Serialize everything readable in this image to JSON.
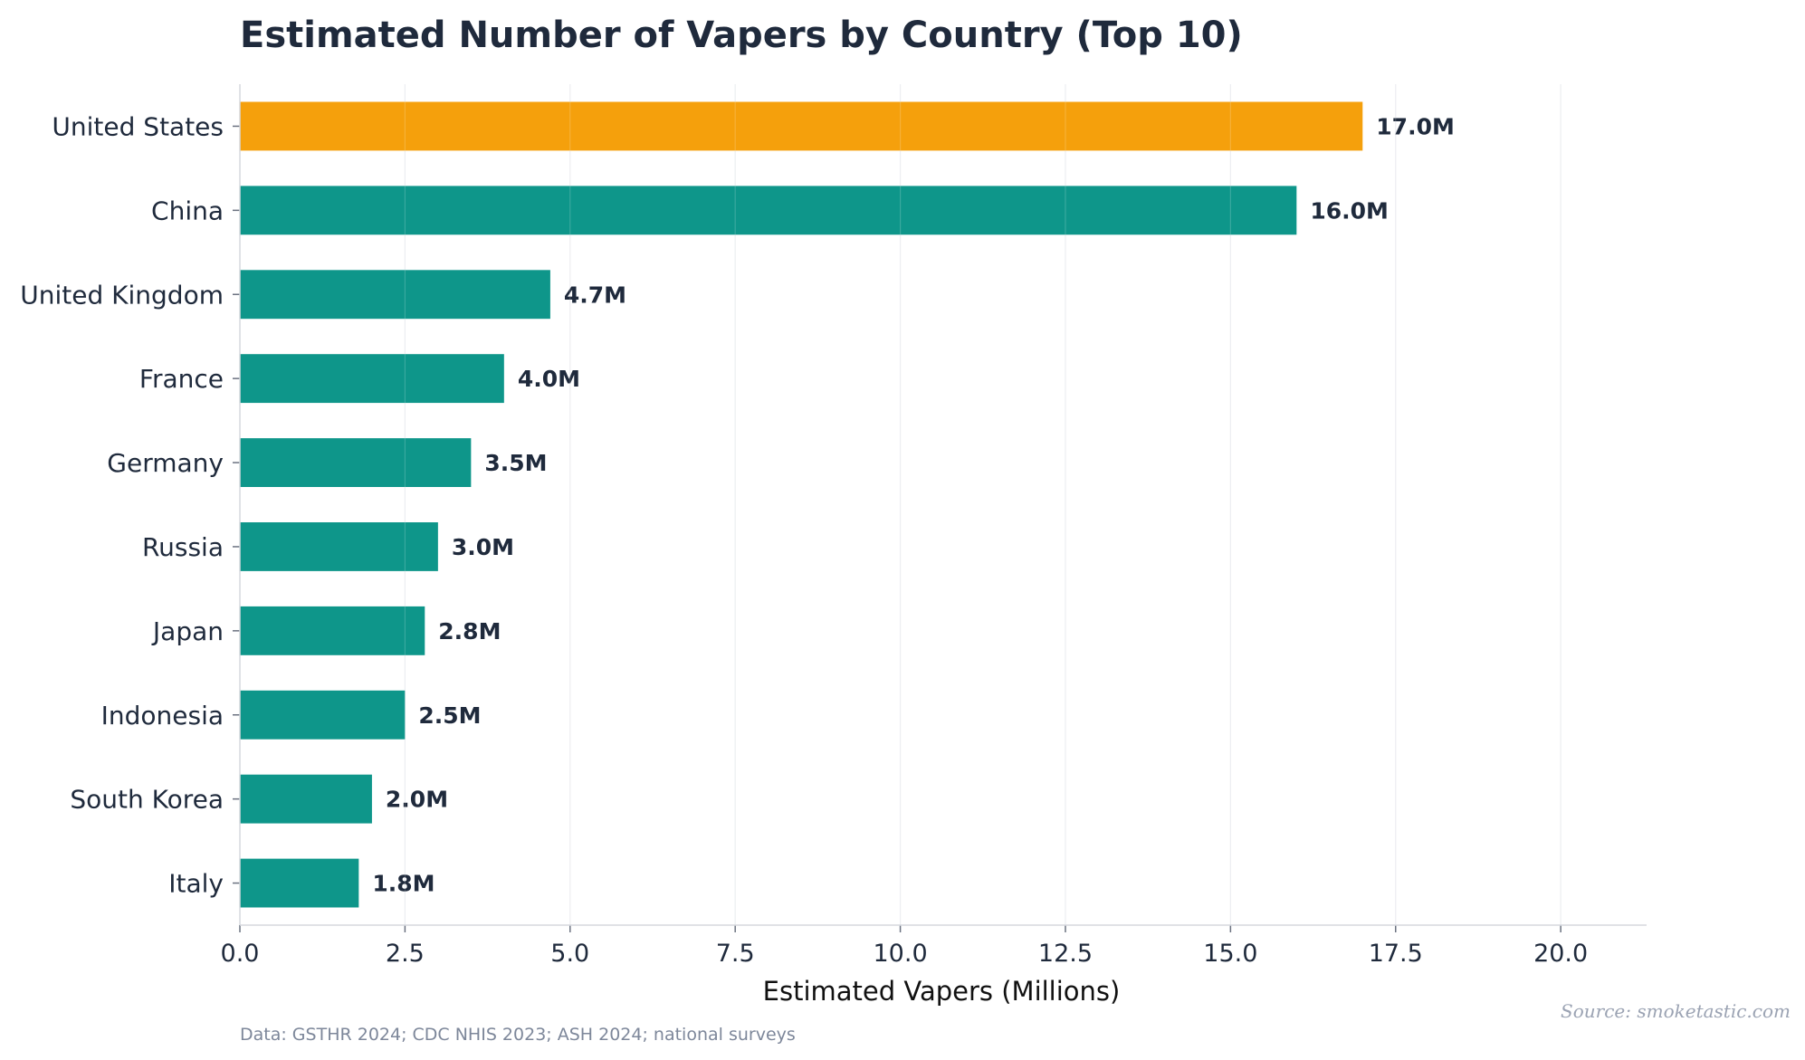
{
  "chart_data": {
    "type": "bar",
    "orientation": "horizontal",
    "title": "Estimated Number of Vapers by Country (Top 10)",
    "xlabel": "Estimated Vapers (Millions)",
    "ylabel": "",
    "xlim": [
      0,
      21.3
    ],
    "xticks": [
      0.0,
      2.5,
      5.0,
      7.5,
      10.0,
      12.5,
      15.0,
      17.5,
      20.0
    ],
    "xtick_labels": [
      "0.0",
      "2.5",
      "5.0",
      "7.5",
      "10.0",
      "12.5",
      "15.0",
      "17.5",
      "20.0"
    ],
    "categories": [
      "United States",
      "China",
      "United Kingdom",
      "France",
      "Germany",
      "Russia",
      "Japan",
      "Indonesia",
      "South Korea",
      "Italy"
    ],
    "values": [
      17.0,
      16.0,
      4.7,
      4.0,
      3.5,
      3.0,
      2.8,
      2.5,
      2.0,
      1.8
    ],
    "value_labels": [
      "17.0M",
      "16.0M",
      "4.7M",
      "4.0M",
      "3.5M",
      "3.0M",
      "2.8M",
      "2.5M",
      "2.0M",
      "1.8M"
    ],
    "bar_colors": [
      "#f5a00c",
      "#0e968a",
      "#0e968a",
      "#0e968a",
      "#0e968a",
      "#0e968a",
      "#0e968a",
      "#0e968a",
      "#0e968a",
      "#0e968a"
    ],
    "highlight_color": "#f5a00c",
    "bar_color": "#0e968a",
    "grid": "vertical",
    "footnote": "Data: GSTHR 2024; CDC NHIS 2023; ASH 2024; national surveys",
    "source": "Source: smoketastic.com"
  }
}
